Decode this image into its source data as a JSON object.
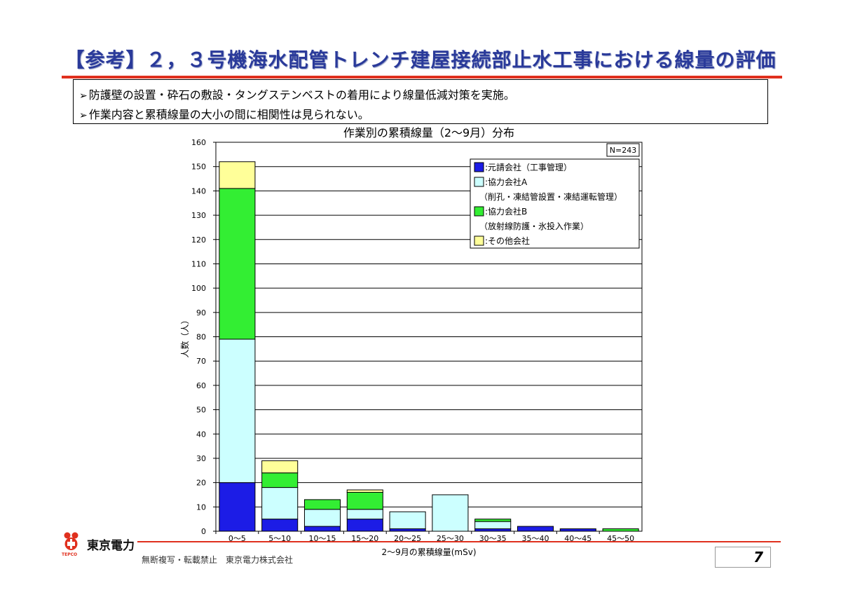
{
  "slide": {
    "title": "【参考】２，３号機海水配管トレンチ建屋接続部止水工事における線量の評価",
    "bullets": [
      "防護壁の設置・砕石の敷設・タングステンベストの着用により線量低減対策を実施。",
      "作業内容と累積線量の大小の間に相関性は見られない。"
    ],
    "bullet_mark": "➢"
  },
  "chart_data": {
    "type": "bar",
    "stacked": true,
    "title": "作業別の累積線量（2～9月）分布",
    "xlabel": "2～9月の累積線量(mSv)",
    "ylabel": "人数（人）",
    "ylim": [
      0,
      160
    ],
    "yticks": [
      0,
      10,
      20,
      30,
      40,
      50,
      60,
      70,
      80,
      90,
      100,
      110,
      120,
      130,
      140,
      150,
      160
    ],
    "grid": true,
    "legend_position": "top-right",
    "annotation": "N=243",
    "categories": [
      "0～5",
      "5～10",
      "10～15",
      "15～20",
      "20～25",
      "25～30",
      "30～35",
      "35～40",
      "40～45",
      "45～50"
    ],
    "series": [
      {
        "name": ":元請会社（工事管理）",
        "color": "#1c1ce6",
        "values": [
          20,
          5,
          2,
          5,
          1,
          0,
          1,
          2,
          1,
          0
        ]
      },
      {
        "name": ":協力会社A",
        "sub": "（削孔・凍結管設置・凍結運転管理）",
        "color": "#ccffff",
        "values": [
          59,
          13,
          7,
          4,
          7,
          15,
          3,
          0,
          0,
          0
        ]
      },
      {
        "name": ":協力会社B",
        "sub": "（放射線防護・氷投入作業）",
        "color": "#33ee33",
        "values": [
          62,
          6,
          4,
          7,
          0,
          0,
          1,
          0,
          0,
          1
        ]
      },
      {
        "name": ":その他会社",
        "color": "#ffff99",
        "values": [
          11,
          5,
          0,
          1,
          0,
          0,
          0,
          0,
          0,
          0
        ]
      }
    ]
  },
  "footer": {
    "company": "東京電力",
    "logo_caption": "TEPCO",
    "copyright": "無断複写・転載禁止　東京電力株式会社",
    "page": "7"
  }
}
